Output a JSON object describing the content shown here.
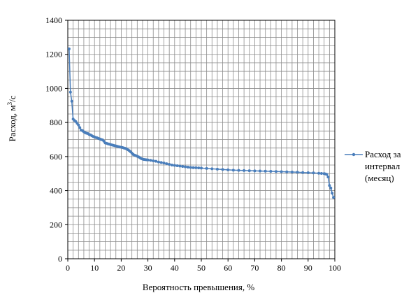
{
  "chart_data": {
    "type": "line",
    "xlabel": "Вероятность превышения, %",
    "ylabel_main": "Расход,  м",
    "ylabel_sup": "3",
    "ylabel_tail": "/с",
    "xlim": [
      0,
      100
    ],
    "ylim": [
      0,
      1400
    ],
    "x_ticks": [
      0,
      10,
      20,
      30,
      40,
      50,
      60,
      70,
      80,
      90,
      100
    ],
    "y_ticks": [
      0,
      200,
      400,
      600,
      800,
      1000,
      1200,
      1400
    ],
    "grid": true,
    "legend_position": "right",
    "color": "#4a7ebb",
    "series": [
      {
        "name_lines": [
          "Расход за",
          "интервал",
          "(месяц)"
        ],
        "x": [
          0.5,
          1.0,
          1.5,
          2.0,
          2.5,
          3.0,
          3.5,
          4.0,
          4.5,
          5.0,
          5.5,
          6.0,
          6.5,
          7.0,
          7.5,
          8.0,
          8.5,
          9.0,
          9.5,
          10.0,
          10.5,
          11.0,
          11.5,
          12.0,
          12.5,
          13.0,
          13.5,
          14.0,
          14.5,
          15.0,
          15.5,
          16.0,
          16.5,
          17.0,
          17.5,
          18.0,
          18.5,
          19.0,
          19.5,
          20.0,
          20.5,
          21.0,
          21.5,
          22.0,
          22.5,
          23.0,
          23.5,
          24.0,
          24.5,
          25.0,
          25.5,
          26.0,
          26.5,
          27.0,
          27.5,
          28.0,
          28.5,
          29.0,
          29.5,
          30.0,
          31.0,
          32.0,
          33.0,
          34.0,
          35.0,
          36.0,
          37.0,
          38.0,
          39.0,
          40.0,
          41.0,
          42.0,
          43.0,
          44.0,
          45.0,
          46.0,
          47.0,
          48.0,
          49.0,
          50.0,
          52.0,
          54.0,
          56.0,
          58.0,
          60.0,
          62.0,
          64.0,
          66.0,
          68.0,
          70.0,
          72.0,
          74.0,
          76.0,
          78.0,
          80.0,
          82.0,
          84.0,
          86.0,
          88.0,
          90.0,
          92.0,
          94.0,
          95.0,
          96.0,
          96.5,
          97.0,
          97.5,
          98.0,
          98.5,
          99.0,
          99.5
        ],
        "y": [
          1232,
          978,
          925,
          820,
          812,
          805,
          795,
          785,
          770,
          755,
          752,
          745,
          740,
          737,
          735,
          730,
          727,
          722,
          718,
          715,
          712,
          710,
          706,
          703,
          700,
          698,
          690,
          680,
          678,
          675,
          673,
          670,
          668,
          666,
          664,
          662,
          660,
          658,
          656,
          655,
          653,
          650,
          648,
          645,
          640,
          635,
          628,
          620,
          612,
          608,
          605,
          602,
          598,
          593,
          588,
          585,
          583,
          582,
          581,
          580,
          578,
          575,
          572,
          568,
          565,
          562,
          558,
          554,
          550,
          548,
          546,
          544,
          542,
          540,
          538,
          536,
          535,
          534,
          533,
          532,
          530,
          528,
          526,
          524,
          522,
          520,
          519,
          518,
          517,
          516,
          515,
          514,
          513,
          512,
          511,
          510,
          509,
          508,
          506,
          505,
          504,
          502,
          501,
          500,
          498,
          495,
          480,
          430,
          415,
          385,
          360
        ]
      }
    ]
  }
}
